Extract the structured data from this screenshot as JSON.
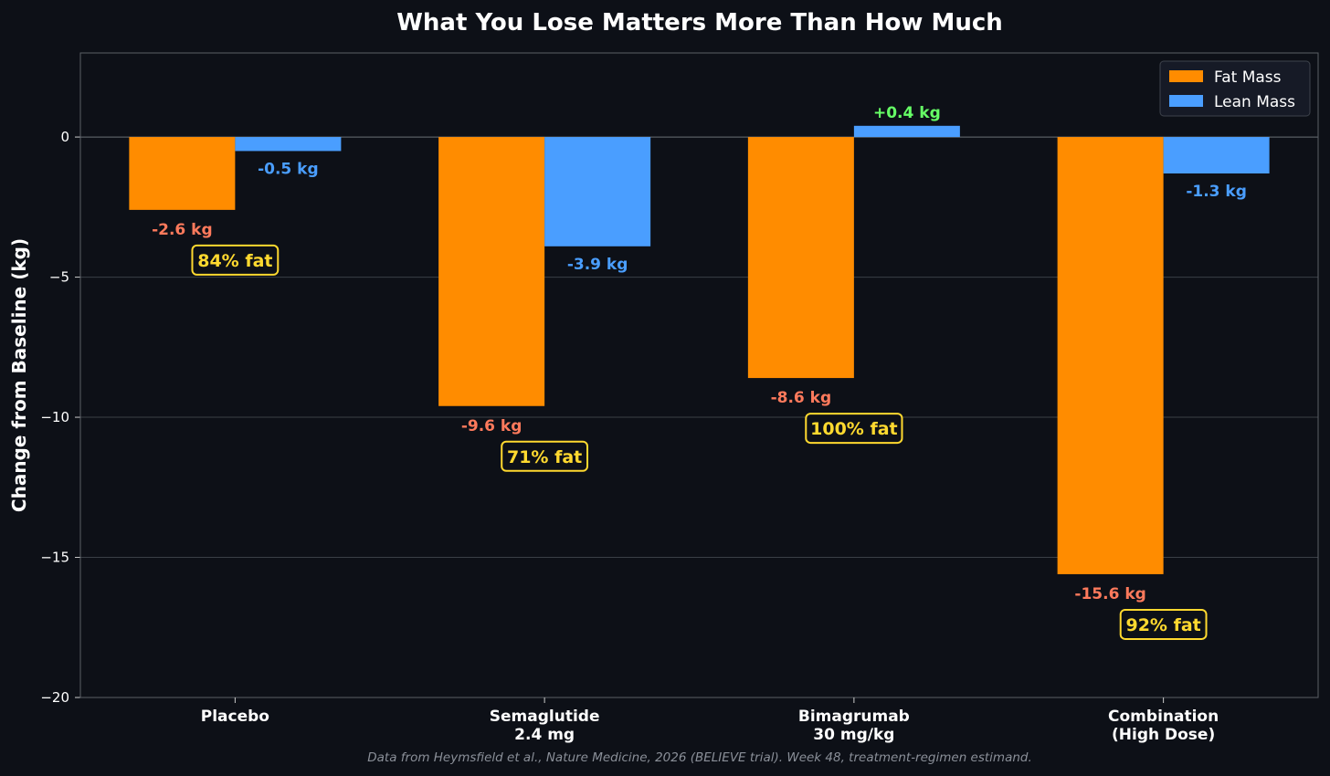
{
  "chart_data": {
    "type": "bar",
    "title": "What You Lose Matters More Than How Much",
    "xlabel": "",
    "ylabel": "Change from Baseline (kg)",
    "ylim": [
      -20,
      3
    ],
    "yticks": [
      0,
      -5,
      -10,
      -15,
      -20
    ],
    "ytick_labels": [
      "0",
      "−5",
      "−10",
      "−15",
      "−20"
    ],
    "grid": true,
    "legend_position": "top-right",
    "categories": [
      {
        "line1": "Placebo",
        "line2": ""
      },
      {
        "line1": "Semaglutide",
        "line2": "2.4 mg"
      },
      {
        "line1": "Bimagrumab",
        "line2": "30 mg/kg"
      },
      {
        "line1": "Combination",
        "line2": "(High Dose)"
      }
    ],
    "series": [
      {
        "name": "Fat Mass",
        "color": "#ff8c00",
        "label_color": "#ff7a5c",
        "values": [
          -2.6,
          -9.6,
          -8.6,
          -15.6
        ],
        "labels": [
          "-2.6 kg",
          "-9.6 kg",
          "-8.6 kg",
          "-15.6 kg"
        ]
      },
      {
        "name": "Lean Mass",
        "color": "#4a9eff",
        "label_color": "#4a9eff",
        "positive_label_color": "#66ff66",
        "values": [
          -0.5,
          -3.9,
          0.4,
          -1.3
        ],
        "labels": [
          "-0.5 kg",
          "-3.9 kg",
          "+0.4 kg",
          "-1.3 kg"
        ]
      }
    ],
    "annotations": {
      "percent_fat": [
        "84% fat",
        "71% fat",
        "100% fat",
        "92% fat"
      ],
      "color": "#ffd92f"
    },
    "source_note": "Data from Heymsfield et al., Nature Medicine, 2026 (BELIEVE trial). Week 48, treatment-regimen estimand."
  },
  "colors": {
    "background": "#0d1017",
    "axis": "#5a5f66",
    "grid": "#3a3f46"
  }
}
